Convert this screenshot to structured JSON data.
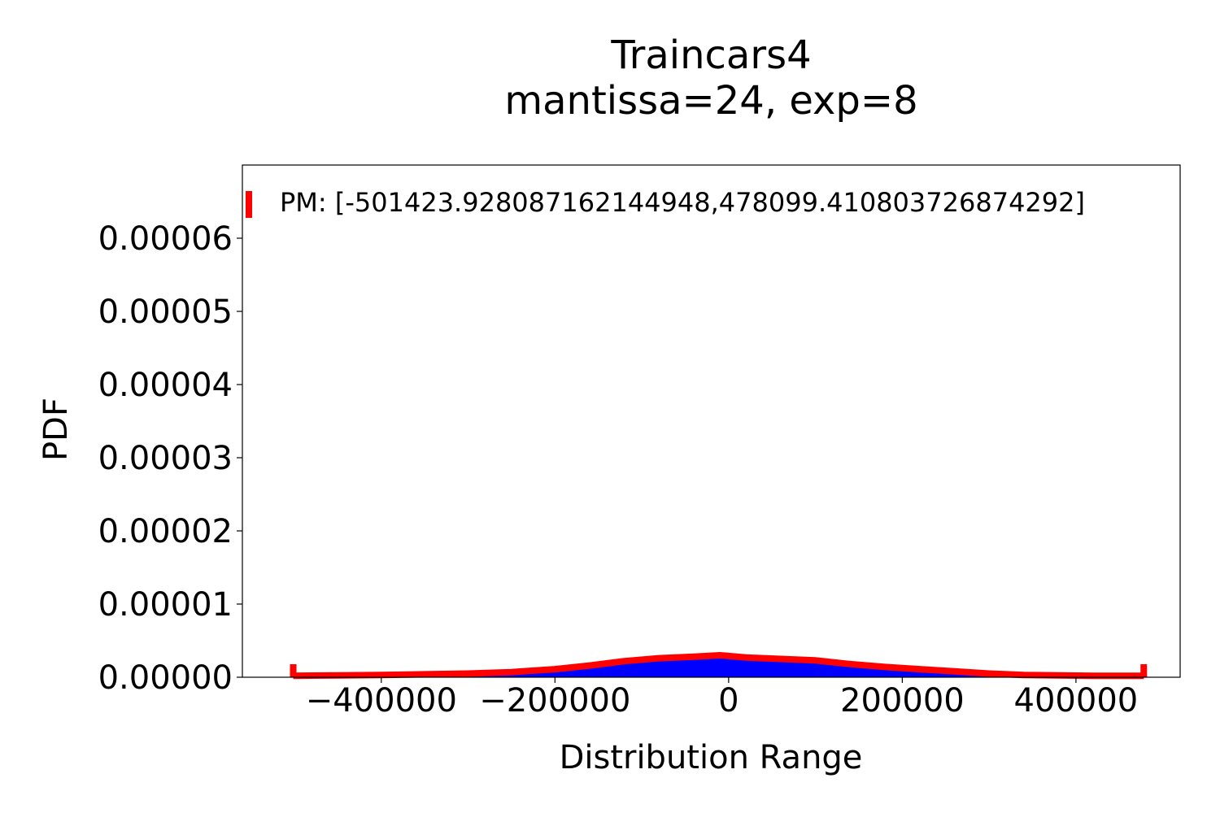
{
  "chart_data": {
    "type": "area",
    "title": "Traincars4",
    "subtitle": "mantissa=24, exp=8",
    "xlabel": "Distribution Range",
    "ylabel": "PDF",
    "xlim": [
      -560000,
      520000
    ],
    "ylim": [
      0,
      7e-05
    ],
    "xticks": [
      -400000,
      -200000,
      0,
      200000,
      400000
    ],
    "xtick_labels": [
      "−400000",
      "−200000",
      "0",
      "200000",
      "400000"
    ],
    "yticks": [
      0,
      1e-05,
      2e-05,
      3e-05,
      4e-05,
      5e-05,
      6e-05
    ],
    "ytick_labels": [
      "0.00000",
      "0.00001",
      "0.00002",
      "0.00003",
      "0.00004",
      "0.00005",
      "0.00006"
    ],
    "grid": false,
    "legend": {
      "placement": "top-left",
      "entries": [
        "PM: [-501423.928087162144948,478099.410803726874292]"
      ]
    },
    "colors": {
      "fill": "#0000ff",
      "line": "#ff0000"
    },
    "series": [
      {
        "name": "PM: [-501423.928087162144948,478099.410803726874292]",
        "x": [
          -501424,
          -450000,
          -400000,
          -350000,
          -300000,
          -250000,
          -200000,
          -160000,
          -120000,
          -80000,
          -40000,
          -10000,
          20000,
          60000,
          100000,
          140000,
          180000,
          220000,
          260000,
          300000,
          340000,
          380000,
          420000,
          460000,
          478099
        ],
        "y": [
          2e-07,
          2.5e-07,
          3e-07,
          4e-07,
          5e-07,
          7e-07,
          1.1e-06,
          1.6e-06,
          2.2e-06,
          2.6e-06,
          2.8e-06,
          3e-06,
          2.7e-06,
          2.5e-06,
          2.3e-06,
          1.8e-06,
          1.4e-06,
          1.1e-06,
          8e-07,
          5e-07,
          3e-07,
          2.5e-07,
          2e-07,
          2e-07,
          2e-07
        ]
      }
    ]
  }
}
